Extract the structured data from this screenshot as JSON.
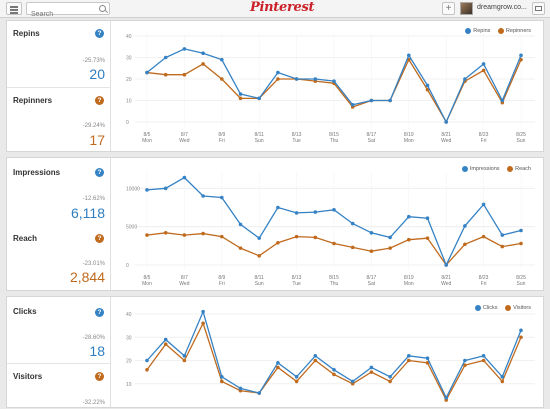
{
  "header": {
    "search_placeholder": "Search",
    "logo_text": "Pinterest",
    "username": "dreamgrow.co...",
    "plus_label": "+"
  },
  "x_ticks": [
    {
      "date": "8/5",
      "day": "Mon",
      "i": 0
    },
    {
      "date": "8/7",
      "day": "Wed",
      "i": 2
    },
    {
      "date": "8/9",
      "day": "Fri",
      "i": 4
    },
    {
      "date": "8/11",
      "day": "Sun",
      "i": 6
    },
    {
      "date": "8/13",
      "day": "Tue",
      "i": 8
    },
    {
      "date": "8/15",
      "day": "Thu",
      "i": 10
    },
    {
      "date": "8/17",
      "day": "Sat",
      "i": 12
    },
    {
      "date": "8/19",
      "day": "Mon",
      "i": 14
    },
    {
      "date": "8/21",
      "day": "Wed",
      "i": 16
    },
    {
      "date": "8/23",
      "day": "Fri",
      "i": 18
    },
    {
      "date": "8/25",
      "day": "Sun",
      "i": 20
    }
  ],
  "colors": {
    "blue": "#3582c4",
    "orange": "#c06a1e"
  },
  "panels": [
    {
      "top_metric": {
        "label": "Repins",
        "pct": "-25.73%",
        "value": "20"
      },
      "bottom_metric": {
        "label": "Repinners",
        "pct": "-29.24%",
        "value": "17"
      },
      "legend": [
        "Repins",
        "Repinners"
      ]
    },
    {
      "top_metric": {
        "label": "Impressions",
        "pct": "-12.62%",
        "value": "6,118"
      },
      "bottom_metric": {
        "label": "Reach",
        "pct": "-23.01%",
        "value": "2,844"
      },
      "legend": [
        "Impressions",
        "Reach"
      ]
    },
    {
      "top_metric": {
        "label": "Clicks",
        "pct": "-28.60%",
        "value": "18"
      },
      "bottom_metric": {
        "label": "Visitors",
        "pct": "-32.22%",
        "value": ""
      },
      "legend": [
        "Clicks",
        "Visitors"
      ]
    }
  ],
  "chart_data": [
    {
      "type": "line",
      "x": [
        "8/5",
        "8/6",
        "8/7",
        "8/8",
        "8/9",
        "8/10",
        "8/11",
        "8/12",
        "8/13",
        "8/14",
        "8/15",
        "8/16",
        "8/17",
        "8/18",
        "8/19",
        "8/20",
        "8/21",
        "8/22",
        "8/23",
        "8/24",
        "8/25"
      ],
      "ylim": [
        0,
        40
      ],
      "yticks": [
        0,
        10,
        20,
        30,
        40
      ],
      "series": [
        {
          "name": "Repins",
          "color": "#3582c4",
          "values": [
            23,
            30,
            34,
            32,
            29,
            13,
            11,
            23,
            20,
            20,
            19,
            8,
            10,
            10,
            31,
            17,
            0,
            20,
            27,
            10,
            31
          ]
        },
        {
          "name": "Repinners",
          "color": "#c06a1e",
          "values": [
            23,
            22,
            22,
            27,
            20,
            11,
            11,
            20,
            20,
            19,
            18,
            7,
            10,
            10,
            29,
            15,
            0,
            19,
            24,
            9,
            29
          ]
        }
      ]
    },
    {
      "type": "line",
      "x": [
        "8/5",
        "8/6",
        "8/7",
        "8/8",
        "8/9",
        "8/10",
        "8/11",
        "8/12",
        "8/13",
        "8/14",
        "8/15",
        "8/16",
        "8/17",
        "8/18",
        "8/19",
        "8/20",
        "8/21",
        "8/22",
        "8/23",
        "8/24",
        "8/25"
      ],
      "ylim": [
        0,
        12000
      ],
      "yticks": [
        0,
        5000,
        10000
      ],
      "series": [
        {
          "name": "Impressions",
          "color": "#3582c4",
          "values": [
            9800,
            10000,
            11400,
            9000,
            8800,
            5300,
            3500,
            7500,
            6800,
            6900,
            7200,
            5400,
            4200,
            3600,
            6300,
            6100,
            0,
            5100,
            7900,
            3900,
            4500
          ]
        },
        {
          "name": "Reach",
          "color": "#c06a1e",
          "values": [
            3900,
            4200,
            3900,
            4100,
            3700,
            2200,
            1200,
            2900,
            3700,
            3600,
            2800,
            2300,
            1800,
            2200,
            3300,
            3500,
            0,
            2700,
            3700,
            2400,
            2800
          ]
        }
      ]
    },
    {
      "type": "line",
      "x": [
        "8/5",
        "8/6",
        "8/7",
        "8/8",
        "8/9",
        "8/10",
        "8/11",
        "8/12",
        "8/13",
        "8/14",
        "8/15",
        "8/16",
        "8/17",
        "8/18",
        "8/19",
        "8/20",
        "8/21",
        "8/22",
        "8/23",
        "8/24",
        "8/25"
      ],
      "ylim": [
        0,
        40
      ],
      "yticks": [
        10,
        20,
        30,
        40
      ],
      "series": [
        {
          "name": "Clicks",
          "color": "#3582c4",
          "values": [
            20,
            29,
            22,
            41,
            13,
            8,
            6,
            19,
            13,
            22,
            16,
            11,
            17,
            13,
            22,
            21,
            4,
            20,
            22,
            13,
            33
          ]
        },
        {
          "name": "Visitors",
          "color": "#c06a1e",
          "values": [
            16,
            27,
            20,
            36,
            11,
            7,
            6,
            17,
            11,
            20,
            14,
            10,
            15,
            11,
            20,
            19,
            3,
            18,
            20,
            11,
            30
          ]
        }
      ]
    }
  ]
}
